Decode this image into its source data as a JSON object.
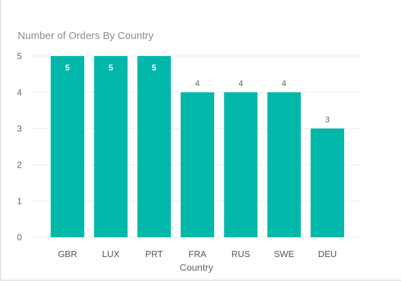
{
  "chart_data": {
    "type": "bar",
    "title": "Number of Orders By Country",
    "xlabel": "Country",
    "ylabel": "",
    "categories": [
      "GBR",
      "LUX",
      "PRT",
      "FRA",
      "RUS",
      "SWE",
      "DEU"
    ],
    "values": [
      5,
      5,
      5,
      4,
      4,
      4,
      3
    ],
    "ylim": [
      0,
      5
    ],
    "yticks": [
      0,
      1,
      2,
      3,
      4,
      5
    ],
    "grid": true,
    "legend": "none",
    "colors": {
      "bar": "#01b8aa",
      "gridline": "#e9e9e9",
      "label_inside": "#ffffff",
      "label_outside": "#666666"
    }
  }
}
